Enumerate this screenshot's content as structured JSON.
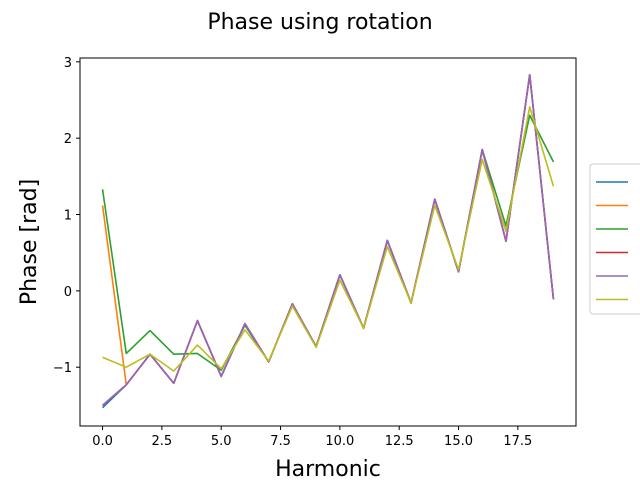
{
  "chart_data": {
    "type": "line",
    "title": "Phase using rotation",
    "xlabel": "Harmonic",
    "ylabel": "Phase [rad]",
    "xlim": [
      -0.95,
      19.95
    ],
    "ylim": [
      -1.77,
      3.05
    ],
    "xticks": [
      0.0,
      2.5,
      5.0,
      7.5,
      10.0,
      12.5,
      15.0,
      17.5
    ],
    "xtick_labels": [
      "0.0",
      "2.5",
      "5.0",
      "7.5",
      "10.0",
      "12.5",
      "15.0",
      "17.5"
    ],
    "yticks": [
      -1,
      0,
      1,
      2,
      3
    ],
    "ytick_labels": [
      "−1",
      "0",
      "1",
      "2",
      "3"
    ],
    "grid": false,
    "legend_position": "right, partially clipped",
    "x": [
      0,
      1,
      2,
      3,
      4,
      5,
      6,
      7,
      8,
      9,
      10,
      11,
      12,
      13,
      14,
      15,
      16,
      17,
      18,
      19
    ],
    "series": [
      {
        "color": "#1f77b4",
        "values": [
          -1.53,
          -1.23,
          -0.83,
          -1.21,
          -0.39,
          -1.12,
          -0.43,
          -0.93,
          -0.17,
          -0.73,
          0.21,
          -0.49,
          0.66,
          -0.16,
          1.2,
          0.25,
          1.85,
          0.65,
          2.83,
          -0.11
        ]
      },
      {
        "color": "#ff7f0e",
        "values": [
          1.12,
          -1.23,
          -0.83,
          -1.21,
          -0.39,
          -1.12,
          -0.43,
          -0.93,
          -0.17,
          -0.73,
          0.21,
          -0.49,
          0.66,
          -0.16,
          1.2,
          0.25,
          1.85,
          0.65,
          2.83,
          -0.11
        ]
      },
      {
        "color": "#2ca02c",
        "values": [
          1.33,
          -0.82,
          -0.52,
          -0.83,
          -0.82,
          -1.04,
          -0.45,
          -0.93,
          -0.17,
          -0.73,
          0.21,
          -0.49,
          0.66,
          -0.16,
          1.2,
          0.25,
          1.85,
          0.85,
          2.3,
          1.69
        ]
      },
      {
        "color": "#d62728",
        "values": [
          -1.5,
          -1.23,
          -0.83,
          -1.21,
          -0.39,
          -1.12,
          -0.43,
          -0.93,
          -0.17,
          -0.73,
          0.21,
          -0.49,
          0.66,
          -0.16,
          1.2,
          0.25,
          1.85,
          0.65,
          2.83,
          -0.11
        ]
      },
      {
        "color": "#9467bd",
        "values": [
          -1.5,
          -1.23,
          -0.83,
          -1.21,
          -0.39,
          -1.12,
          -0.43,
          -0.93,
          -0.17,
          -0.73,
          0.21,
          -0.49,
          0.66,
          -0.16,
          1.2,
          0.25,
          1.85,
          0.65,
          2.83,
          -0.11
        ]
      },
      {
        "color": "#bcbd22",
        "values": [
          -0.87,
          -1.0,
          -0.83,
          -1.05,
          -0.71,
          -1.02,
          -0.51,
          -0.92,
          -0.2,
          -0.74,
          0.14,
          -0.49,
          0.58,
          -0.16,
          1.12,
          0.28,
          1.72,
          0.78,
          2.41,
          1.37
        ]
      }
    ]
  }
}
